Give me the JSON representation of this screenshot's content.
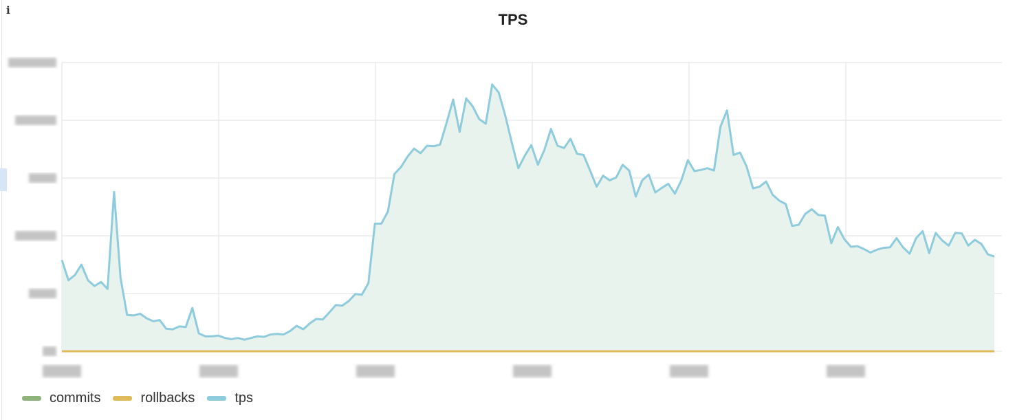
{
  "chart_data": {
    "type": "area",
    "title": "TPS",
    "xlabel": "",
    "ylabel": "",
    "ylim": [
      0,
      5
    ],
    "grid": true,
    "legend_placement": "bottom-left",
    "x_tick_labels_obscured": true,
    "y_tick_labels_obscured": true,
    "series": [
      {
        "name": "commits",
        "color": "#8fb47a",
        "values_constant": 0
      },
      {
        "name": "rollbacks",
        "color": "#e0bb5c",
        "values_constant": 0
      },
      {
        "name": "tps",
        "color": "#8ecbdc",
        "fill": "#e8f3ee",
        "values": [
          1.58,
          1.23,
          1.32,
          1.5,
          1.23,
          1.13,
          1.2,
          1.08,
          2.76,
          1.27,
          0.63,
          0.62,
          0.65,
          0.57,
          0.52,
          0.54,
          0.39,
          0.38,
          0.43,
          0.42,
          0.75,
          0.31,
          0.26,
          0.26,
          0.27,
          0.23,
          0.21,
          0.23,
          0.2,
          0.23,
          0.26,
          0.25,
          0.29,
          0.3,
          0.29,
          0.35,
          0.44,
          0.38,
          0.48,
          0.56,
          0.55,
          0.67,
          0.8,
          0.79,
          0.87,
          0.99,
          0.98,
          1.18,
          2.21,
          2.21,
          2.42,
          3.07,
          3.19,
          3.37,
          3.51,
          3.43,
          3.56,
          3.55,
          3.58,
          3.96,
          4.36,
          3.8,
          4.38,
          4.24,
          4.02,
          3.94,
          4.62,
          4.48,
          4.08,
          3.61,
          3.17,
          3.39,
          3.57,
          3.23,
          3.49,
          3.85,
          3.56,
          3.52,
          3.68,
          3.42,
          3.4,
          3.13,
          2.85,
          3.04,
          2.96,
          3.01,
          3.23,
          3.13,
          2.68,
          2.96,
          3.06,
          2.75,
          2.83,
          2.9,
          2.73,
          2.96,
          3.31,
          3.12,
          3.14,
          3.17,
          3.13,
          3.89,
          4.17,
          3.4,
          3.44,
          3.2,
          2.82,
          2.85,
          2.94,
          2.71,
          2.61,
          2.55,
          2.17,
          2.19,
          2.38,
          2.46,
          2.36,
          2.35,
          1.87,
          2.15,
          1.94,
          1.81,
          1.82,
          1.77,
          1.71,
          1.76,
          1.79,
          1.8,
          1.96,
          1.8,
          1.69,
          1.96,
          2.08,
          1.7,
          2.05,
          1.92,
          1.83,
          2.05,
          2.04,
          1.83,
          1.93,
          1.86,
          1.68,
          1.64
        ]
      }
    ]
  },
  "legend": {
    "items": [
      "commits",
      "rollbacks",
      "tps"
    ]
  }
}
